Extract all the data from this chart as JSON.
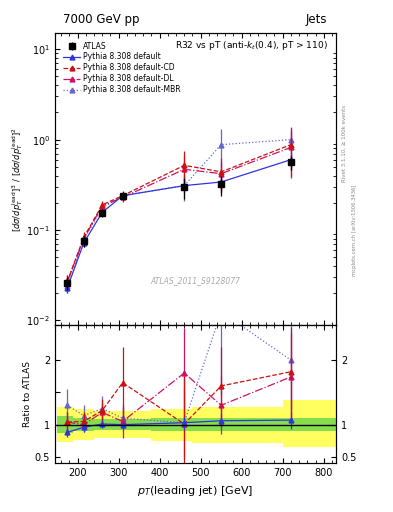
{
  "title_top": "7000 GeV pp",
  "title_right": "Jets",
  "plot_title": "R32 vs pT (anti-k_{t}(0.4), pT > 110)",
  "ylabel_main": "[d#sigma/dp_{T}^{lead}]^{3} / [d#sigma/dp_{T}^{lead}]^{2}",
  "ylabel_ratio": "Ratio to ATLAS",
  "xlabel": "p_{T}(leading jet) [GeV]",
  "watermark": "ATLAS_2011_S9128077",
  "atlas_x": [
    175,
    215,
    260,
    310,
    460,
    550,
    720
  ],
  "atlas_y": [
    0.026,
    0.075,
    0.155,
    0.24,
    0.3,
    0.32,
    0.56
  ],
  "atlas_yerr_lo": [
    0.004,
    0.01,
    0.015,
    0.025,
    0.08,
    0.08,
    0.1
  ],
  "atlas_yerr_hi": [
    0.004,
    0.01,
    0.015,
    0.025,
    0.08,
    0.08,
    0.1
  ],
  "pythia_default_x": [
    175,
    215,
    260,
    310,
    460,
    550,
    720
  ],
  "pythia_default_y": [
    0.023,
    0.072,
    0.157,
    0.24,
    0.31,
    0.34,
    0.6
  ],
  "pythia_default_yerr": [
    0.003,
    0.007,
    0.011,
    0.018,
    0.055,
    0.06,
    0.1
  ],
  "pythia_cd_x": [
    175,
    215,
    260,
    310,
    460,
    550,
    720
  ],
  "pythia_cd_y": [
    0.027,
    0.083,
    0.19,
    0.24,
    0.52,
    0.44,
    0.88
  ],
  "pythia_cd_yerr": [
    0.005,
    0.012,
    0.018,
    0.03,
    0.22,
    0.18,
    0.48
  ],
  "pythia_dl_x": [
    175,
    215,
    260,
    310,
    460,
    550,
    720
  ],
  "pythia_dl_y": [
    0.027,
    0.08,
    0.185,
    0.23,
    0.47,
    0.42,
    0.82
  ],
  "pythia_dl_yerr": [
    0.005,
    0.011,
    0.016,
    0.026,
    0.19,
    0.15,
    0.44
  ],
  "pythia_mbr_x": [
    175,
    215,
    260,
    310,
    460,
    550,
    720
  ],
  "pythia_mbr_y": [
    0.024,
    0.079,
    0.175,
    0.24,
    0.31,
    0.88,
    1.0
  ],
  "pythia_mbr_yerr": [
    0.004,
    0.01,
    0.014,
    0.022,
    0.1,
    0.42,
    0.38
  ],
  "ratio_default_y": [
    0.88,
    0.96,
    1.01,
    1.0,
    1.03,
    1.06,
    1.07
  ],
  "ratio_default_yerr": [
    0.07,
    0.07,
    0.06,
    0.06,
    0.09,
    0.1,
    0.13
  ],
  "ratio_cd_y": [
    1.04,
    1.05,
    1.22,
    1.65,
    1.01,
    1.6,
    1.82
  ],
  "ratio_cd_yerr_lo": [
    0.15,
    0.14,
    0.18,
    0.55,
    0.75,
    0.6,
    0.7
  ],
  "ratio_cd_yerr_hi": [
    0.15,
    0.14,
    0.18,
    0.55,
    0.75,
    0.6,
    0.7
  ],
  "ratio_dl_y": [
    1.04,
    1.0,
    1.19,
    1.05,
    1.8,
    1.3,
    1.74
  ],
  "ratio_dl_yerr_lo": [
    0.15,
    0.12,
    0.14,
    0.25,
    0.7,
    0.45,
    0.68
  ],
  "ratio_dl_yerr_hi": [
    0.15,
    0.12,
    0.14,
    0.25,
    0.7,
    0.45,
    0.68
  ],
  "ratio_mbr_y": [
    1.3,
    1.14,
    1.25,
    1.1,
    1.03,
    2.75,
    2.0
  ],
  "ratio_mbr_yerr_lo": [
    0.25,
    0.17,
    0.2,
    0.18,
    0.55,
    1.3,
    0.75
  ],
  "ratio_mbr_yerr_hi": [
    0.25,
    0.17,
    0.2,
    0.18,
    0.55,
    1.3,
    0.75
  ],
  "band_x_edges": [
    150,
    190,
    240,
    290,
    380,
    480,
    570,
    700,
    830
  ],
  "green_lo": [
    0.87,
    0.9,
    0.92,
    0.92,
    0.9,
    0.9,
    0.9,
    0.9
  ],
  "green_hi": [
    1.13,
    1.1,
    1.08,
    1.08,
    1.1,
    1.1,
    1.1,
    1.1
  ],
  "yellow_lo": [
    0.73,
    0.76,
    0.79,
    0.79,
    0.75,
    0.72,
    0.72,
    0.65
  ],
  "yellow_hi": [
    1.27,
    1.24,
    1.21,
    1.21,
    1.25,
    1.28,
    1.28,
    1.38
  ],
  "color_atlas": "#000000",
  "color_default": "#3333dd",
  "color_cd": "#cc1111",
  "color_dl": "#cc1166",
  "color_mbr": "#6666cc",
  "ylim_main": [
    0.009,
    15.0
  ],
  "ylim_ratio": [
    0.4,
    2.55
  ],
  "xlim": [
    145,
    830
  ]
}
